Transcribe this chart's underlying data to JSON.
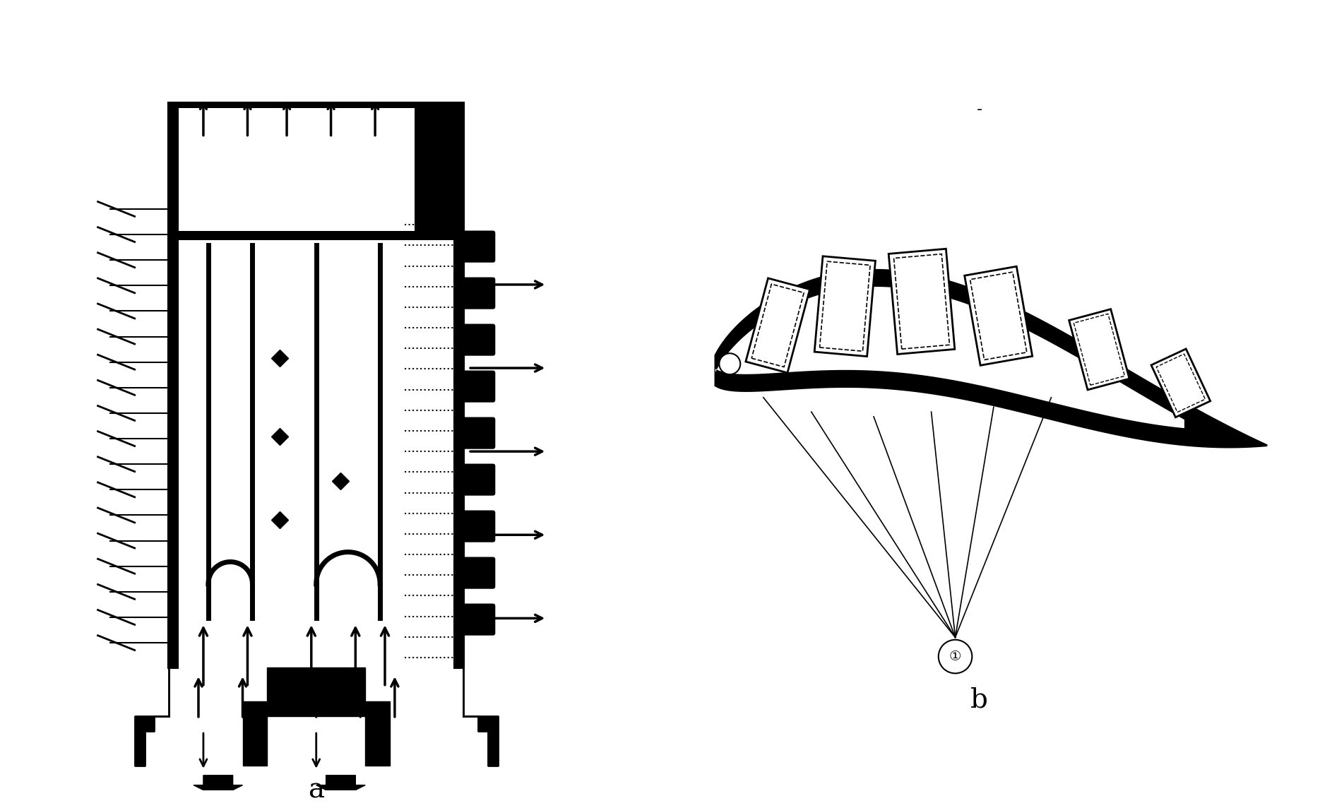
{
  "fig_width": 18.69,
  "fig_height": 11.44,
  "bg_color": "#ffffff",
  "label_a": "a",
  "label_b": "b",
  "label_1": "①",
  "title_text": "-"
}
